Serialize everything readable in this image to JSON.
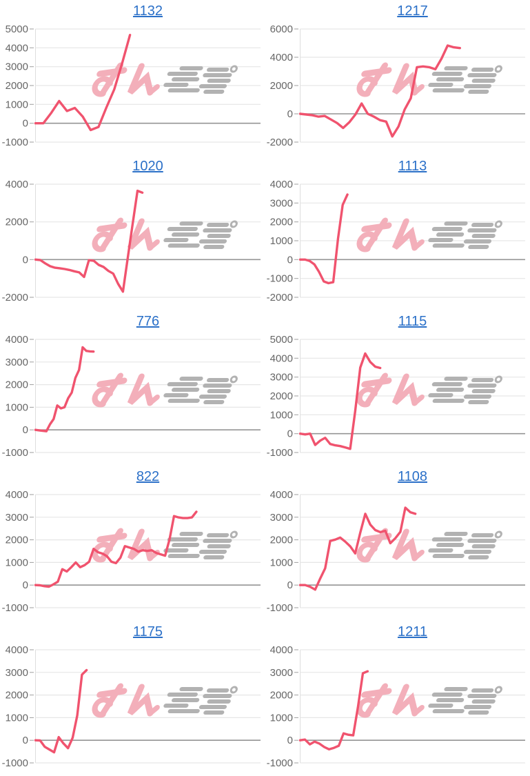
{
  "grid": {
    "columns": 2,
    "rows": 5
  },
  "style": {
    "line_color": "#f0536e",
    "title_color": "#2b70c8",
    "tick_color": "#666666",
    "grid_color": "#e6e6e6",
    "zero_line_color": "#949494",
    "axis_line_color": "#dddddd",
    "tick_mark_color": "#9e9e9e",
    "background": "#ffffff"
  },
  "watermark": {
    "text": "みんレポ",
    "pink_color": "#f3afba",
    "gray_color": "#b2b2b2"
  },
  "chart_data": [
    {
      "type": "line",
      "title": "1132",
      "ylim": [
        -1000,
        5000
      ],
      "yticks": [
        5000,
        4000,
        3000,
        2000,
        1000,
        0,
        -1000
      ],
      "values": [
        0,
        0,
        550,
        1180,
        650,
        810,
        350,
        -360,
        -200,
        830,
        1800,
        3180,
        4680
      ],
      "x_end_fraction": 0.42
    },
    {
      "type": "line",
      "title": "1217",
      "ylim": [
        -2000,
        6000
      ],
      "yticks": [
        6000,
        4000,
        2000,
        0,
        -2000
      ],
      "values": [
        0,
        -50,
        -100,
        -200,
        -150,
        -400,
        -650,
        -1000,
        -600,
        -50,
        730,
        0,
        -200,
        -450,
        -550,
        -1600,
        -900,
        300,
        1100,
        3300,
        3350,
        3300,
        3150,
        3900,
        4830,
        4700,
        4650
      ],
      "x_end_fraction": 0.71
    },
    {
      "type": "line",
      "title": "1020",
      "ylim": [
        -2000,
        4000
      ],
      "yticks": [
        4000,
        2000,
        0,
        -2000
      ],
      "values": [
        0,
        -25,
        -200,
        -350,
        -430,
        -460,
        -500,
        -550,
        -620,
        -680,
        -920,
        -30,
        -65,
        -280,
        -390,
        -600,
        -745,
        -1280,
        -1700,
        100,
        1900,
        3650,
        3550
      ],
      "x_end_fraction": 0.475
    },
    {
      "type": "line",
      "title": "1113",
      "ylim": [
        -2000,
        4000
      ],
      "yticks": [
        4000,
        3000,
        2000,
        1000,
        0,
        -1000,
        -2000
      ],
      "values": [
        0,
        0,
        -70,
        -250,
        -650,
        -1160,
        -1250,
        -1200,
        1100,
        2900,
        3450
      ],
      "x_end_fraction": 0.21
    },
    {
      "type": "line",
      "title": "776",
      "ylim": [
        -1000,
        4000
      ],
      "yticks": [
        4000,
        3000,
        2000,
        1000,
        0,
        -1000
      ],
      "values": [
        0,
        -20,
        -40,
        -60,
        250,
        480,
        1080,
        950,
        1000,
        1400,
        1650,
        2300,
        2650,
        3650,
        3490,
        3470,
        3460
      ],
      "x_end_fraction": 0.258
    },
    {
      "type": "line",
      "title": "1115",
      "ylim": [
        -1000,
        5000
      ],
      "yticks": [
        5000,
        4000,
        3000,
        2000,
        1000,
        0,
        -1000
      ],
      "values": [
        0,
        -40,
        0,
        -600,
        -370,
        -220,
        -550,
        -620,
        -660,
        -730,
        -810,
        1200,
        3500,
        4250,
        3800,
        3550,
        3480
      ],
      "x_end_fraction": 0.356
    },
    {
      "type": "line",
      "title": "822",
      "ylim": [
        -1000,
        4000
      ],
      "yticks": [
        4000,
        3000,
        2000,
        1000,
        0,
        -1000
      ],
      "values": [
        0,
        -10,
        -50,
        -70,
        30,
        150,
        700,
        600,
        790,
        1000,
        790,
        880,
        1030,
        1600,
        1450,
        1390,
        1270,
        1030,
        970,
        1210,
        1720,
        1660,
        1600,
        1480,
        1540,
        1510,
        1540,
        1420,
        1360,
        1300,
        2020,
        3050,
        2990,
        2960,
        2960,
        2990,
        3240
      ],
      "x_end_fraction": 0.715
    },
    {
      "type": "line",
      "title": "1108",
      "ylim": [
        -1000,
        4000
      ],
      "yticks": [
        4000,
        3000,
        2000,
        1000,
        0,
        -1000
      ],
      "values": [
        0,
        0,
        -75,
        -200,
        290,
        740,
        1950,
        2010,
        2100,
        1920,
        1710,
        1400,
        2310,
        3150,
        2670,
        2430,
        2340,
        2400,
        1850,
        2070,
        2350,
        3420,
        3220,
        3150
      ],
      "x_end_fraction": 0.512
    },
    {
      "type": "line",
      "title": "1175",
      "ylim": [
        -1000,
        4000
      ],
      "yticks": [
        4000,
        3000,
        2000,
        1000,
        0,
        -1000
      ],
      "values": [
        0,
        -10,
        -290,
        -410,
        -530,
        140,
        -135,
        -350,
        110,
        1100,
        2900,
        3100
      ],
      "x_end_fraction": 0.227
    },
    {
      "type": "line",
      "title": "1211",
      "ylim": [
        -1000,
        4000
      ],
      "yticks": [
        4000,
        3000,
        2000,
        1000,
        0,
        -1000
      ],
      "values": [
        0,
        30,
        -180,
        -60,
        -150,
        -300,
        -400,
        -335,
        -245,
        305,
        245,
        215,
        1495,
        2960,
        3050
      ],
      "x_end_fraction": 0.3
    }
  ]
}
